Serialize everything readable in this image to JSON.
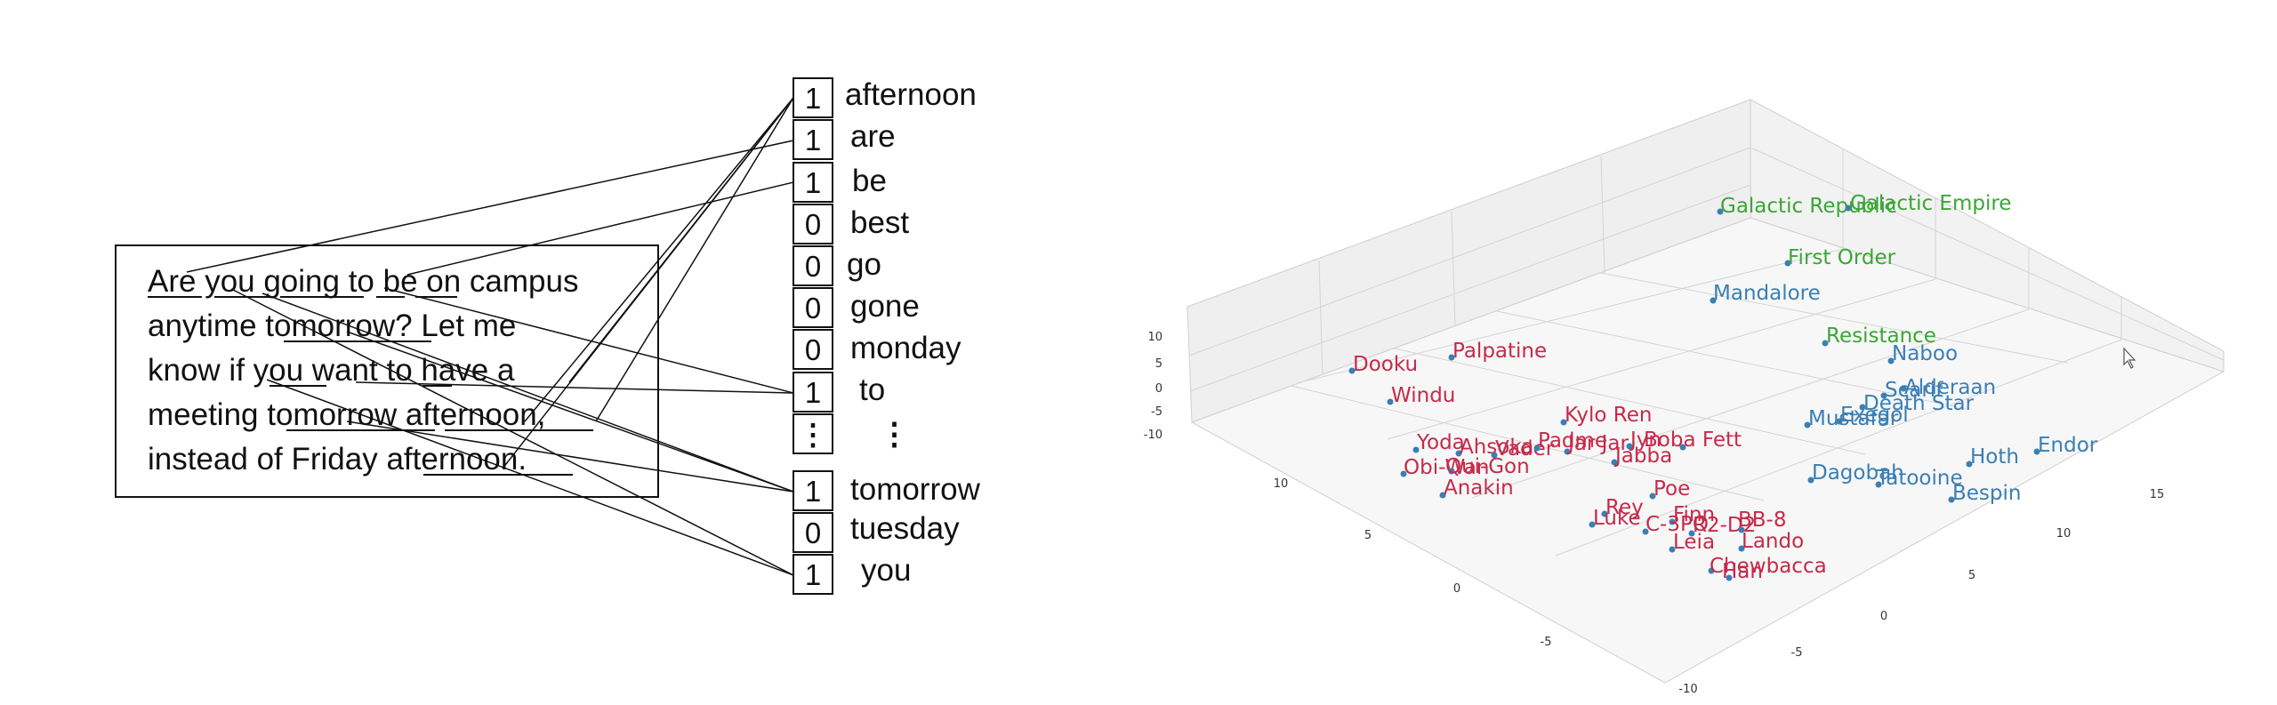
{
  "bag_of_words": {
    "sentence_lines": [
      "Are you going to be on campus",
      "anytime tomorrow? Let me",
      "know if you want to have a",
      "meeting tomorrow afternoon,",
      "instead of Friday afternoon."
    ],
    "vector": [
      {
        "value": "1",
        "word": "afternoon"
      },
      {
        "value": "1",
        "word": "are"
      },
      {
        "value": "1",
        "word": "be"
      },
      {
        "value": "0",
        "word": "best"
      },
      {
        "value": "0",
        "word": "go"
      },
      {
        "value": "0",
        "word": "gone"
      },
      {
        "value": "0",
        "word": "monday"
      },
      {
        "value": "1",
        "word": "to"
      },
      {
        "value": "⋮",
        "word": "⋮"
      },
      {
        "value": "1",
        "word": "tomorrow"
      },
      {
        "value": "0",
        "word": "tuesday"
      },
      {
        "value": "1",
        "word": "you"
      }
    ]
  },
  "chart_data": {
    "type": "scatter",
    "title": "",
    "xlabel": "",
    "ylabel": "",
    "zlabel": "",
    "x_ticks": [
      "-10",
      "-5",
      "0",
      "5",
      "10",
      "15"
    ],
    "y_ticks": [
      "-10",
      "-5",
      "0",
      "5",
      "10"
    ],
    "z_ticks": [
      "10",
      "5",
      "0",
      "-5",
      "-10"
    ],
    "series": [
      {
        "color": "#c62a4a",
        "points": [
          {
            "label": "Dooku"
          },
          {
            "label": "Palpatine"
          },
          {
            "label": "Windu"
          },
          {
            "label": "Kylo Ren"
          },
          {
            "label": "Yoda"
          },
          {
            "label": "Ahsoka"
          },
          {
            "label": "Vader"
          },
          {
            "label": "Padme"
          },
          {
            "label": "Jar Jar"
          },
          {
            "label": "Jyn"
          },
          {
            "label": "Boba Fett"
          },
          {
            "label": "Jabba"
          },
          {
            "label": "Obi-Wan"
          },
          {
            "label": "Qui-Gon"
          },
          {
            "label": "Anakin"
          },
          {
            "label": "Poe"
          },
          {
            "label": "Rey"
          },
          {
            "label": "Luke"
          },
          {
            "label": "Finn"
          },
          {
            "label": "C-3PO"
          },
          {
            "label": "R2-D2"
          },
          {
            "label": "BB-8"
          },
          {
            "label": "Leia"
          },
          {
            "label": "Lando"
          },
          {
            "label": "Chewbacca"
          },
          {
            "label": "Han"
          }
        ]
      },
      {
        "color": "#3a7fb4",
        "points": [
          {
            "label": "Mandalore"
          },
          {
            "label": "Naboo"
          },
          {
            "label": "Alderaan"
          },
          {
            "label": "Scarif"
          },
          {
            "label": "Death Star"
          },
          {
            "label": "Mustafar"
          },
          {
            "label": "Exegol"
          },
          {
            "label": "Dagobah"
          },
          {
            "label": "Tatooine"
          },
          {
            "label": "Hoth"
          },
          {
            "label": "Endor"
          },
          {
            "label": "Bespin"
          }
        ]
      },
      {
        "color": "#3aa636",
        "points": [
          {
            "label": "Galactic Republic"
          },
          {
            "label": "Galactic Empire"
          },
          {
            "label": "First Order"
          },
          {
            "label": "Resistance"
          }
        ]
      }
    ]
  }
}
